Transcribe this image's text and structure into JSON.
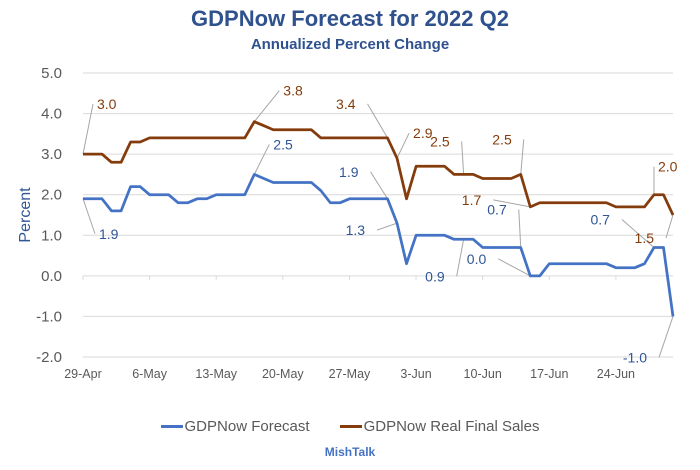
{
  "chart_data": {
    "type": "line",
    "title": "GDPNow Forecast for 2022 Q2",
    "subtitle": "Annualized Percent Change",
    "xlabel": "",
    "ylabel": "Percent",
    "ylim": [
      -2.0,
      5.0
    ],
    "yticks": [
      "5.0",
      "4.0",
      "3.0",
      "2.0",
      "1.0",
      "0.0",
      "-1.0",
      "-2.0"
    ],
    "ytick_values": [
      5,
      4,
      3,
      2,
      1,
      0,
      -1,
      -2
    ],
    "x_start": "29-Apr",
    "x_count_days": 63,
    "xticks": [
      "29-Apr",
      "6-May",
      "13-May",
      "20-May",
      "27-May",
      "3-Jun",
      "10-Jun",
      "17-Jun",
      "24-Jun"
    ],
    "xtick_day_index": [
      0,
      7,
      14,
      21,
      28,
      35,
      42,
      49,
      56
    ],
    "grid": true,
    "legend_position": "bottom",
    "series": [
      {
        "name": "GDPNow Forecast",
        "color": "#4472C4",
        "values": [
          1.9,
          1.9,
          1.9,
          1.6,
          1.6,
          2.2,
          2.2,
          2.0,
          2.0,
          2.0,
          1.8,
          1.8,
          1.9,
          1.9,
          2.0,
          2.0,
          2.0,
          2.0,
          2.5,
          2.4,
          2.3,
          2.3,
          2.3,
          2.3,
          2.3,
          2.1,
          1.8,
          1.8,
          1.9,
          1.9,
          1.9,
          1.9,
          1.9,
          1.3,
          0.3,
          1.0,
          1.0,
          1.0,
          1.0,
          0.9,
          0.9,
          0.9,
          0.7,
          0.7,
          0.7,
          0.7,
          0.7,
          0.0,
          0.0,
          0.3,
          0.3,
          0.3,
          0.3,
          0.3,
          0.3,
          0.3,
          0.2,
          0.2,
          0.2,
          0.3,
          0.7,
          0.7,
          -1.0
        ],
        "labels": [
          {
            "index": 0,
            "text": "1.9"
          },
          {
            "index": 18,
            "text": "2.5"
          },
          {
            "index": 32,
            "text": "1.9"
          },
          {
            "index": 33,
            "text": "1.3"
          },
          {
            "index": 40,
            "text": "0.9"
          },
          {
            "index": 46,
            "text": "0.7"
          },
          {
            "index": 47,
            "text": "0.0"
          },
          {
            "index": 60,
            "text": "0.7"
          },
          {
            "index": 62,
            "text": "-1.0"
          }
        ]
      },
      {
        "name": "GDPNow Real Final Sales",
        "color": "#843C0C",
        "values": [
          3.0,
          3.0,
          3.0,
          2.8,
          2.8,
          3.3,
          3.3,
          3.4,
          3.4,
          3.4,
          3.4,
          3.4,
          3.4,
          3.4,
          3.4,
          3.4,
          3.4,
          3.4,
          3.8,
          3.7,
          3.6,
          3.6,
          3.6,
          3.6,
          3.6,
          3.4,
          3.4,
          3.4,
          3.4,
          3.4,
          3.4,
          3.4,
          3.4,
          2.9,
          1.9,
          2.7,
          2.7,
          2.7,
          2.7,
          2.5,
          2.5,
          2.5,
          2.4,
          2.4,
          2.4,
          2.4,
          2.5,
          1.7,
          1.8,
          1.8,
          1.8,
          1.8,
          1.8,
          1.8,
          1.8,
          1.8,
          1.7,
          1.7,
          1.7,
          1.7,
          2.0,
          2.0,
          1.5
        ],
        "labels": [
          {
            "index": 0,
            "text": "3.0"
          },
          {
            "index": 18,
            "text": "3.8"
          },
          {
            "index": 32,
            "text": "3.4"
          },
          {
            "index": 33,
            "text": "2.9"
          },
          {
            "index": 40,
            "text": "2.5"
          },
          {
            "index": 46,
            "text": "2.5"
          },
          {
            "index": 47,
            "text": "1.7"
          },
          {
            "index": 60,
            "text": "2.0"
          },
          {
            "index": 62,
            "text": "1.5"
          }
        ]
      }
    ]
  },
  "footer": "MishTalk"
}
